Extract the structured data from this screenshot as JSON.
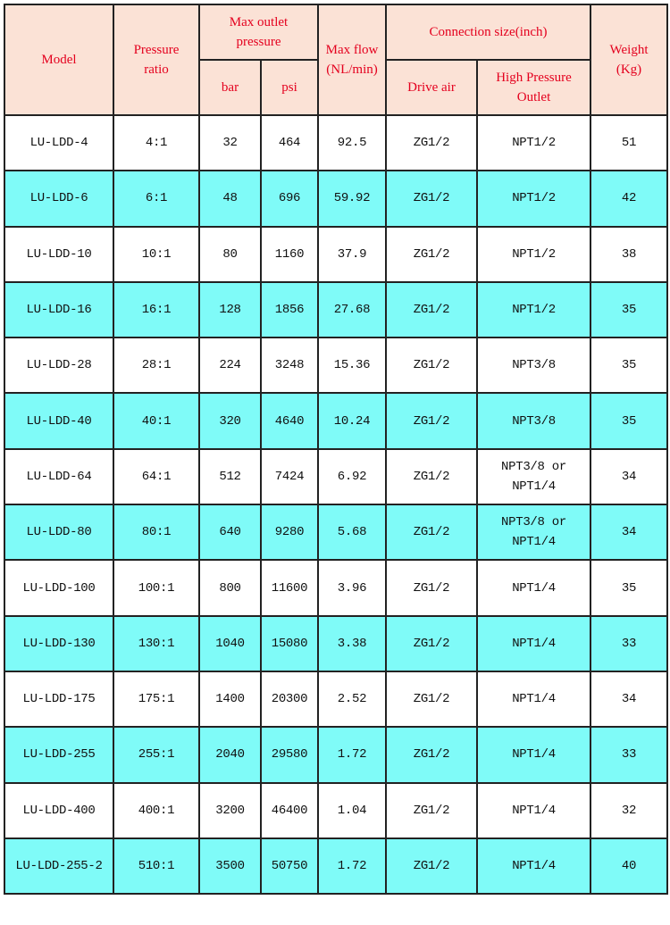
{
  "header": {
    "model": "Model",
    "pressure_ratio": "Pressure ratio",
    "max_outlet_pressure": "Max outlet pressure",
    "bar": "bar",
    "psi": "psi",
    "max_flow": "Max flow (NL/min)",
    "connection_size": "Connection size(inch)",
    "drive_air": "Drive air",
    "high_pressure_outlet": "High Pressure Outlet",
    "weight": "Weight (Kg)"
  },
  "colors": {
    "header_bg": "#fbe2d6",
    "header_text": "#e4001e",
    "alt_row": "#7ffbf8"
  },
  "rows": [
    [
      "LU-LDD-4",
      "4:1",
      "32",
      "464",
      "92.5",
      "ZG1/2",
      "NPT1/2",
      "51"
    ],
    [
      "LU-LDD-6",
      "6:1",
      "48",
      "696",
      "59.92",
      "ZG1/2",
      "NPT1/2",
      "42"
    ],
    [
      "LU-LDD-10",
      "10:1",
      "80",
      "1160",
      "37.9",
      "ZG1/2",
      "NPT1/2",
      "38"
    ],
    [
      "LU-LDD-16",
      "16:1",
      "128",
      "1856",
      "27.68",
      "ZG1/2",
      "NPT1/2",
      "35"
    ],
    [
      "LU-LDD-28",
      "28:1",
      "224",
      "3248",
      "15.36",
      "ZG1/2",
      "NPT3/8",
      "35"
    ],
    [
      "LU-LDD-40",
      "40:1",
      "320",
      "4640",
      "10.24",
      "ZG1/2",
      "NPT3/8",
      "35"
    ],
    [
      "LU-LDD-64",
      "64:1",
      "512",
      "7424",
      "6.92",
      "ZG1/2",
      "NPT3/8 or NPT1/4",
      "34"
    ],
    [
      "LU-LDD-80",
      "80:1",
      "640",
      "9280",
      "5.68",
      "ZG1/2",
      "NPT3/8 or NPT1/4",
      "34"
    ],
    [
      "LU-LDD-100",
      "100:1",
      "800",
      "11600",
      "3.96",
      "ZG1/2",
      "NPT1/4",
      "35"
    ],
    [
      "LU-LDD-130",
      "130:1",
      "1040",
      "15080",
      "3.38",
      "ZG1/2",
      "NPT1/4",
      "33"
    ],
    [
      "LU-LDD-175",
      "175:1",
      "1400",
      "20300",
      "2.52",
      "ZG1/2",
      "NPT1/4",
      "34"
    ],
    [
      "LU-LDD-255",
      "255:1",
      "2040",
      "29580",
      "1.72",
      "ZG1/2",
      "NPT1/4",
      "33"
    ],
    [
      "LU-LDD-400",
      "400:1",
      "3200",
      "46400",
      "1.04",
      "ZG1/2",
      "NPT1/4",
      "32"
    ],
    [
      "LU-LDD-255-2",
      "510:1",
      "3500",
      "50750",
      "1.72",
      "ZG1/2",
      "NPT1/4",
      "40"
    ]
  ]
}
